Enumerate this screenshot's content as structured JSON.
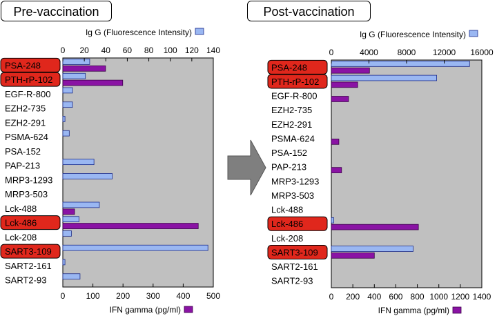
{
  "panels": {
    "pre": {
      "title": "Pre-vaccination"
    },
    "post": {
      "title": "Post-vaccination"
    }
  },
  "arrow": {
    "color": "#7f7f7f"
  },
  "colors": {
    "igg": "#9ab7f2",
    "ifn": "#8a13a4",
    "plot_bg": "#c0c0c0",
    "highlight": "#e0271c"
  },
  "chart_data": [
    {
      "type": "bar",
      "title": "Pre-vaccination",
      "orientation": "horizontal",
      "categories": [
        "PSA-248",
        "PTH-rP-102",
        "EGF-R-800",
        "EZH2-735",
        "EZH2-291",
        "PSMA-624",
        "PSA-152",
        "PAP-213",
        "MRP3-1293",
        "MRP3-503",
        "Lck-488",
        "Lck-486",
        "Lck-208",
        "SART3-109",
        "SART2-161",
        "SART2-93"
      ],
      "highlighted": [
        "PSA-248",
        "PTH-rP-102",
        "Lck-486",
        "SART3-109"
      ],
      "series": [
        {
          "name": "Ig G (Fluorescence Intensity)",
          "axis": "top",
          "xlim": [
            0,
            140
          ],
          "ticks": [
            0,
            20,
            40,
            60,
            80,
            100,
            120,
            140
          ],
          "values": [
            25,
            21,
            9,
            9,
            2,
            6,
            0,
            29,
            46,
            0,
            34,
            15,
            8,
            135,
            2,
            16
          ]
        },
        {
          "name": "IFN gamma (pg/ml)",
          "axis": "bottom",
          "xlim": [
            0,
            500
          ],
          "ticks": [
            0,
            100,
            200,
            300,
            400,
            500
          ],
          "values": [
            142,
            199,
            0,
            0,
            0,
            0,
            0,
            0,
            0,
            0,
            39,
            450,
            0,
            0,
            0,
            0
          ]
        }
      ],
      "top_axis_label": "Ig G (Fluorescence Intensity)",
      "bottom_axis_label": "IFN gamma (pg/ml)"
    },
    {
      "type": "bar",
      "title": "Post-vaccination",
      "orientation": "horizontal",
      "categories": [
        "PSA-248",
        "PTH-rP-102",
        "EGF-R-800",
        "EZH2-735",
        "EZH2-291",
        "PSMA-624",
        "PSA-152",
        "PAP-213",
        "MRP3-1293",
        "MRP3-503",
        "Lck-488",
        "Lck-486",
        "Lck-208",
        "SART3-109",
        "SART2-161",
        "SART2-93"
      ],
      "highlighted": [
        "PSA-248",
        "PTH-rP-102",
        "Lck-486",
        "SART3-109"
      ],
      "series": [
        {
          "name": "Ig G (Fluorescence Intensity)",
          "axis": "top",
          "xlim": [
            0,
            16000
          ],
          "ticks": [
            0,
            4000,
            8000,
            12000,
            16000
          ],
          "values": [
            14700,
            11200,
            0,
            0,
            0,
            0,
            0,
            0,
            0,
            0,
            0,
            250,
            0,
            8700,
            0,
            0
          ]
        },
        {
          "name": "IFN gamma (pg/ml)",
          "axis": "bottom",
          "xlim": [
            0,
            1400
          ],
          "ticks": [
            0,
            200,
            400,
            600,
            800,
            1000,
            1200,
            1400
          ],
          "values": [
            355,
            245,
            160,
            0,
            0,
            70,
            0,
            95,
            0,
            0,
            0,
            810,
            0,
            400,
            0,
            0
          ]
        }
      ],
      "top_axis_label": "Ig G (Fluorescence Intensity)",
      "bottom_axis_label": "IFN gamma (pg/ml)"
    }
  ]
}
